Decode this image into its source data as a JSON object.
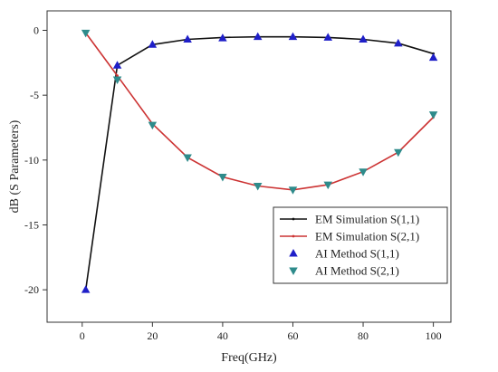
{
  "chart_data": {
    "type": "line",
    "title": "",
    "xlabel": "Freq(GHz)",
    "ylabel": "dB (S Parameters)",
    "xlim": [
      -10,
      105
    ],
    "ylim": [
      -22.5,
      1.5
    ],
    "xticks": [
      0,
      20,
      40,
      60,
      80,
      100
    ],
    "yticks": [
      0,
      -5,
      -10,
      -15,
      -20
    ],
    "xtick_labels": [
      "0",
      "20",
      "40",
      "60",
      "80",
      "100"
    ],
    "ytick_labels": [
      "0",
      "-5",
      "-10",
      "-15",
      "-20"
    ],
    "grid": false,
    "legend_position": "lower-right",
    "x": [
      1,
      10,
      20,
      30,
      40,
      50,
      60,
      70,
      80,
      90,
      100
    ],
    "series": [
      {
        "name": "EM Simulation S(1,1)",
        "kind": "line",
        "color": "#111111",
        "values": [
          -20.0,
          -2.7,
          -1.1,
          -0.7,
          -0.55,
          -0.5,
          -0.5,
          -0.55,
          -0.7,
          -1.0,
          -1.8
        ]
      },
      {
        "name": "EM Simulation S(2,1)",
        "kind": "line",
        "color": "#cc3333",
        "values": [
          -0.2,
          -3.5,
          -7.2,
          -9.8,
          -11.3,
          -12.0,
          -12.3,
          -11.9,
          -10.9,
          -9.4,
          -6.7
        ]
      },
      {
        "name": "AI Method S(1,1)",
        "kind": "marker",
        "marker": "triangle-up",
        "color": "#1f1fc8",
        "values": [
          -20.0,
          -2.7,
          -1.1,
          -0.7,
          -0.6,
          -0.5,
          -0.5,
          -0.55,
          -0.7,
          -1.0,
          -2.1
        ]
      },
      {
        "name": "AI Method S(2,1)",
        "kind": "marker",
        "marker": "triangle-down",
        "color": "#2e8b8b",
        "values": [
          -0.2,
          -3.8,
          -7.3,
          -9.8,
          -11.3,
          -12.0,
          -12.3,
          -11.9,
          -10.9,
          -9.4,
          -6.5
        ]
      }
    ]
  }
}
